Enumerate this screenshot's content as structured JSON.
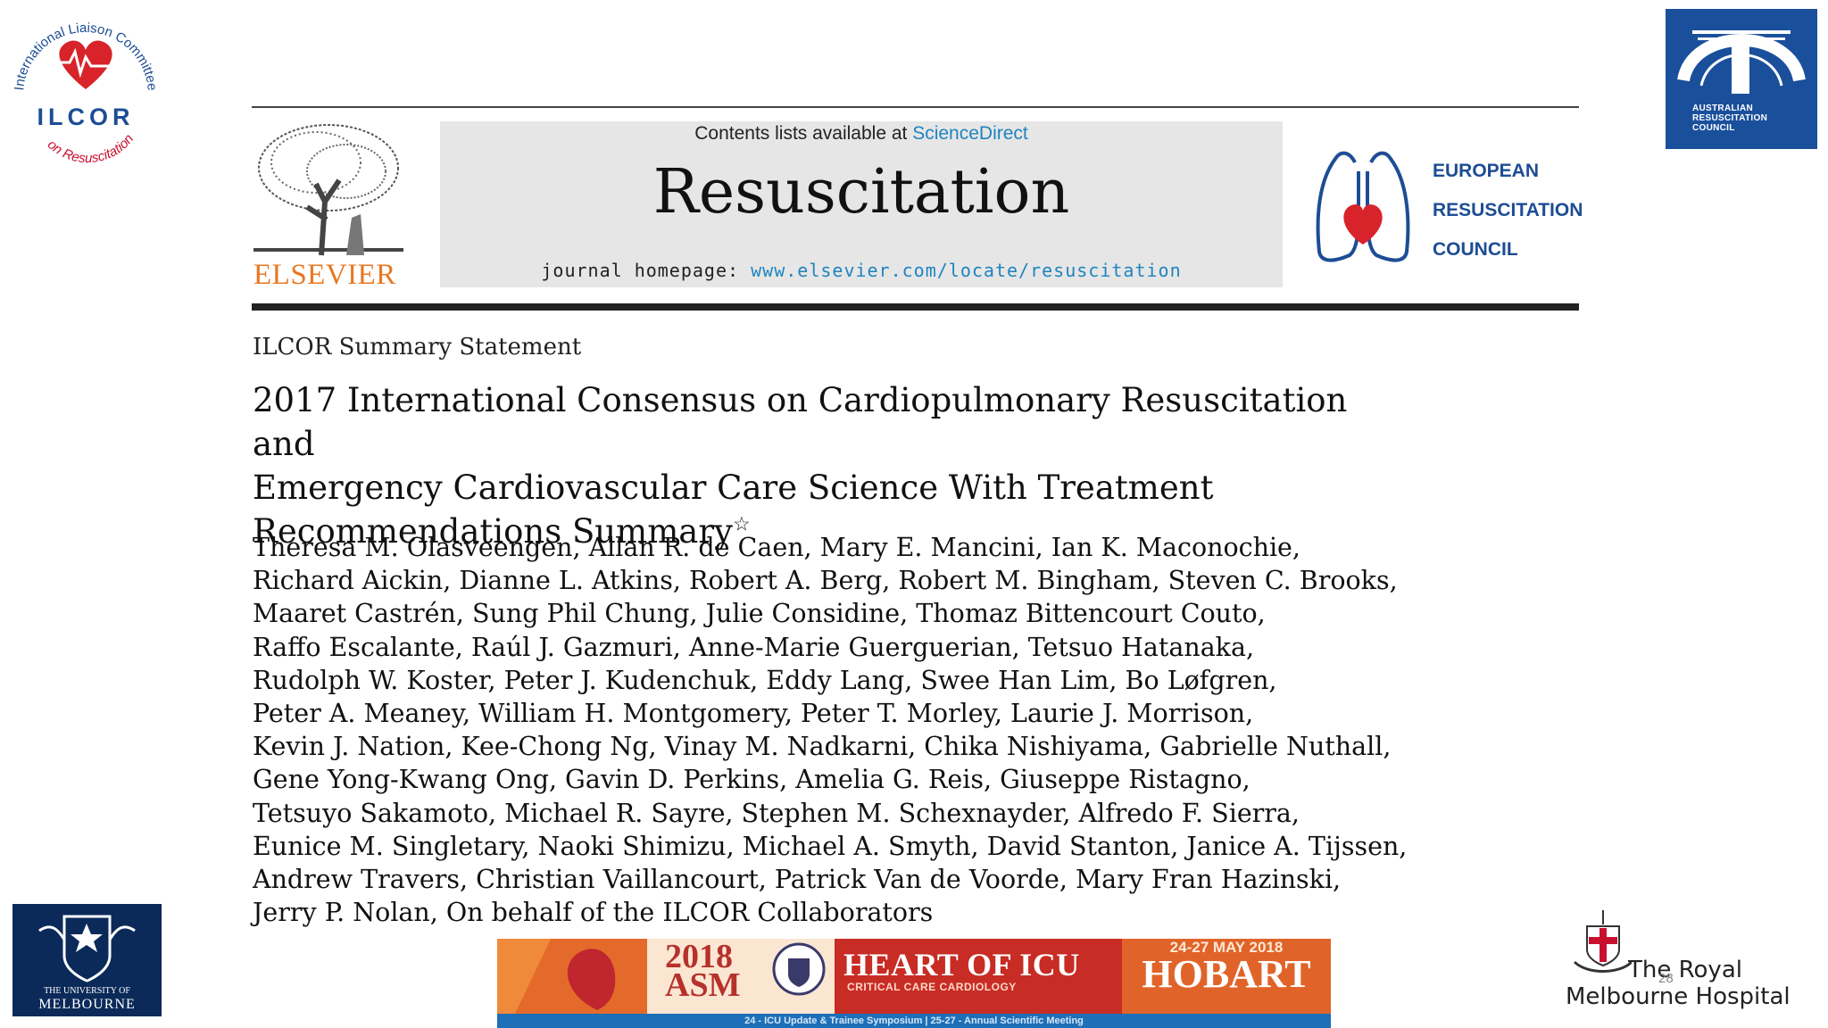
{
  "logos": {
    "ilcor": {
      "arc_text": "International Liaison Committee on Resuscitation",
      "acronym": "ILCOR"
    },
    "arc": {
      "lines": [
        "AUSTRALIAN",
        "RESUSCITATION",
        "COUNCIL"
      ]
    },
    "uom": {
      "lines": [
        "THE UNIVERSITY OF",
        "MELBOURNE"
      ]
    },
    "rmh": {
      "line1": "The Royal",
      "line2": "Melbourne Hospital"
    },
    "erc": {
      "lines": [
        "EUROPEAN",
        "RESUSCITATION",
        "COUNCIL"
      ]
    },
    "elsevier": "ELSEVIER"
  },
  "journal": {
    "contents_prefix": "Contents lists available at ",
    "contents_link": "ScienceDirect",
    "title": "Resuscitation",
    "homepage_prefix": "journal homepage: ",
    "homepage_url": "www.elsevier.com/locate/resuscitation"
  },
  "article": {
    "kind": "ILCOR Summary Statement",
    "title_lines": [
      "2017 International Consensus on Cardiopulmonary Resuscitation and",
      "Emergency Cardiovascular Care Science With Treatment",
      "Recommendations Summary"
    ],
    "title_mark": "☆",
    "author_lines": [
      "Theresa M. Olasveengen, Allan R. de Caen, Mary E. Mancini, Ian K. Maconochie,",
      "Richard Aickin, Dianne L. Atkins, Robert A. Berg, Robert M. Bingham, Steven C. Brooks,",
      "Maaret Castrén, Sung Phil Chung, Julie Considine, Thomaz Bittencourt Couto,",
      "Raffo Escalante, Raúl J. Gazmuri, Anne-Marie Guerguerian, Tetsuo Hatanaka,",
      "Rudolph W. Koster, Peter J. Kudenchuk, Eddy Lang, Swee Han Lim, Bo Løfgren,",
      "Peter A. Meaney, William H. Montgomery, Peter T. Morley, Laurie J. Morrison,",
      "Kevin J. Nation, Kee-Chong Ng, Vinay M. Nadkarni, Chika Nishiyama, Gabrielle Nuthall,",
      "Gene Yong-Kwang Ong, Gavin D. Perkins, Amelia G. Reis, Giuseppe Ristagno,",
      "Tetsuyo Sakamoto, Michael R. Sayre, Stephen M. Schexnayder, Alfredo F. Sierra,",
      "Eunice M. Singletary, Naoki Shimizu, Michael A. Smyth, David Stanton, Janice A. Tijssen,",
      "Andrew Travers, Christian Vaillancourt, Patrick Van de Voorde, Mary Fran Hazinski,",
      "Jerry P. Nolan, On behalf of the ILCOR Collaborators"
    ]
  },
  "banner": {
    "year": "2018",
    "event": "ASM",
    "headline": "HEART OF ICU",
    "subtitle": "CRITICAL CARE CARDIOLOGY",
    "date": "24-27 MAY 2018",
    "city": "HOBART",
    "footer": "24 - ICU Update & Trainee Symposium | 25-27 - Annual Scientific Meeting"
  },
  "slide_number": "28",
  "colors": {
    "link": "#1f84c0",
    "elsevier_orange": "#e87722",
    "erc_blue": "#1d4d94",
    "banner_blue": "#1d6fb8"
  }
}
